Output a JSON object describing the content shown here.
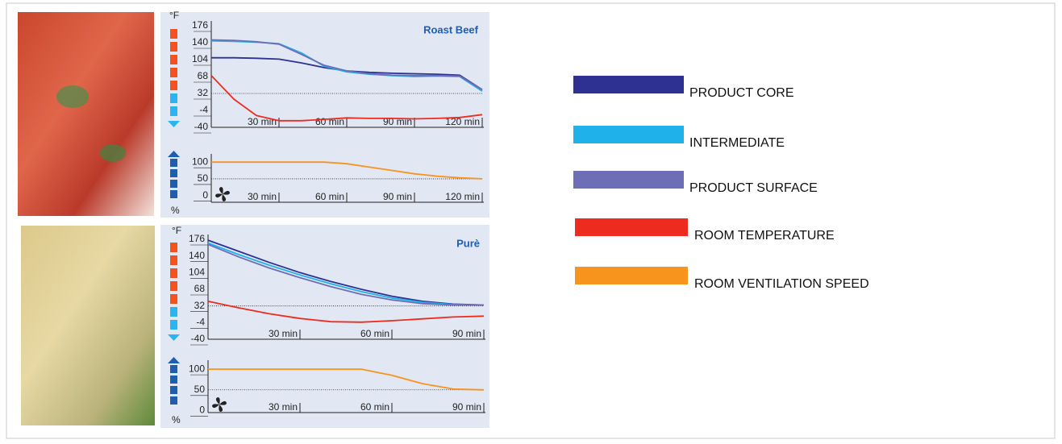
{
  "chart_data": [
    {
      "type": "line",
      "title": "Roast Beef",
      "y_unit": "°F",
      "x": [
        0,
        10,
        20,
        30,
        40,
        50,
        60,
        70,
        80,
        90,
        100,
        110,
        120
      ],
      "series": [
        {
          "name": "PRODUCT CORE",
          "color": "#2e3192",
          "values": [
            108,
            108,
            107,
            105,
            97,
            87,
            80,
            77,
            75,
            74,
            73,
            71,
            40
          ]
        },
        {
          "name": "INTERMEDIATE",
          "color": "#1fb1ea",
          "values": [
            144,
            143,
            141,
            138,
            118,
            90,
            78,
            73,
            70,
            68,
            69,
            68,
            37
          ]
        },
        {
          "name": "PRODUCT SURFACE",
          "color": "#6e6eb6",
          "values": [
            146,
            145,
            142,
            137,
            115,
            92,
            80,
            74,
            71,
            70,
            70,
            69,
            40
          ]
        },
        {
          "name": "ROOM TEMPERATURE",
          "color": "#ee2b1f",
          "values": [
            70,
            20,
            -15,
            -26,
            -26,
            -23,
            -20,
            -21,
            -21,
            -22,
            -21,
            -19,
            -13
          ]
        }
      ],
      "xlim": [
        0,
        120
      ],
      "ylim": [
        -40,
        176
      ],
      "xticks": [
        {
          "value": 30,
          "label": "30 min"
        },
        {
          "value": 60,
          "label": "60 min"
        },
        {
          "value": 90,
          "label": "90 min"
        },
        {
          "value": 120,
          "label": "120 min"
        }
      ],
      "yticks": [
        176,
        140,
        104,
        68,
        32,
        -4,
        -40
      ],
      "hline": 32
    },
    {
      "type": "line",
      "y_unit": "%",
      "x": [
        0,
        10,
        20,
        30,
        40,
        50,
        60,
        70,
        80,
        90,
        100,
        110,
        120
      ],
      "series": [
        {
          "name": "ROOM VENTILATION SPEED",
          "color": "#f7941d",
          "values": [
            100,
            100,
            100,
            100,
            100,
            100,
            95,
            85,
            75,
            65,
            58,
            53,
            50
          ]
        }
      ],
      "xlim": [
        0,
        120
      ],
      "ylim": [
        -20,
        110
      ],
      "xticks": [
        {
          "value": 30,
          "label": "30 min"
        },
        {
          "value": 60,
          "label": "60 min"
        },
        {
          "value": 90,
          "label": "90 min"
        },
        {
          "value": 120,
          "label": "120 min"
        }
      ],
      "yticks": [
        100,
        50,
        0
      ],
      "hline": 50
    },
    {
      "type": "line",
      "title": "Purè",
      "y_unit": "°F",
      "x": [
        0,
        10,
        20,
        30,
        40,
        50,
        60,
        70,
        80,
        90
      ],
      "series": [
        {
          "color": "#2e3192",
          "values": [
            174,
            150,
            126,
            104,
            85,
            68,
            53,
            42,
            36,
            34
          ]
        },
        {
          "color": "#1fb1ea",
          "values": [
            168,
            143,
            120,
            99,
            80,
            63,
            49,
            40,
            35,
            34
          ]
        },
        {
          "color": "#6e6eb6",
          "values": [
            165,
            138,
            114,
            93,
            74,
            57,
            45,
            37,
            34,
            34
          ]
        },
        {
          "color": "#ee2b1f",
          "values": [
            42,
            28,
            15,
            5,
            -2,
            -3,
            0,
            4,
            8,
            10
          ]
        }
      ],
      "xlim": [
        0,
        90
      ],
      "ylim": [
        -40,
        176
      ],
      "xticks": [
        {
          "value": 30,
          "label": "30 min"
        },
        {
          "value": 60,
          "label": "60 min"
        },
        {
          "value": 90,
          "label": "90 min"
        }
      ],
      "yticks": [
        176,
        140,
        104,
        68,
        32,
        -4,
        -40
      ],
      "hline": 32
    },
    {
      "type": "line",
      "y_unit": "%",
      "x": [
        0,
        10,
        20,
        30,
        40,
        50,
        60,
        70,
        80,
        90
      ],
      "series": [
        {
          "color": "#f7941d",
          "values": [
            100,
            100,
            100,
            100,
            100,
            100,
            85,
            65,
            52,
            50
          ]
        }
      ],
      "xlim": [
        0,
        90
      ],
      "ylim": [
        -5,
        110
      ],
      "xticks": [
        {
          "value": 30,
          "label": "30 min"
        },
        {
          "value": 60,
          "label": "60 min"
        },
        {
          "value": 90,
          "label": "90 min"
        }
      ],
      "yticks": [
        100,
        50,
        0
      ],
      "hline": 50
    }
  ]
}
